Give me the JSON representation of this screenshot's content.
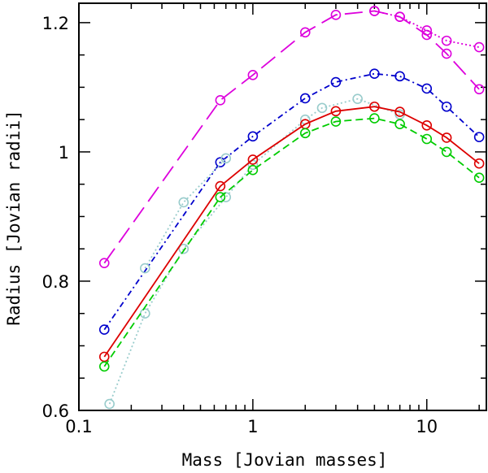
{
  "chart_data": {
    "type": "line",
    "xscale": "log",
    "xlim": [
      0.1,
      22
    ],
    "ylim": [
      0.6,
      1.23
    ],
    "xlabel": "Mass [Jovian masses]",
    "ylabel": "Radius [Jovian radii]",
    "xticks": [
      {
        "value": 0.1,
        "label": "0.1"
      },
      {
        "value": 1,
        "label": "1"
      },
      {
        "value": 10,
        "label": "10"
      }
    ],
    "yticks": [
      {
        "value": 0.6,
        "label": "0.6"
      },
      {
        "value": 0.8,
        "label": "0.8"
      },
      {
        "value": 1.0,
        "label": "1"
      },
      {
        "value": 1.2,
        "label": "1.2"
      }
    ],
    "series": [
      {
        "name": "magenta-long-dash",
        "color": "#dd00dd",
        "dash": "22,9",
        "x": [
          0.14,
          0.65,
          1.0,
          2.0,
          3.0,
          5.0,
          7.0,
          10.0,
          13.0,
          20.0
        ],
        "y": [
          0.828,
          1.08,
          1.119,
          1.185,
          1.212,
          1.218,
          1.209,
          1.181,
          1.152,
          1.097
        ]
      },
      {
        "name": "magenta-dotted",
        "color": "#dd00dd",
        "dash": "2,3",
        "x": [
          5.0,
          7.0,
          10.0,
          13.0,
          20.0
        ],
        "y": [
          1.218,
          1.209,
          1.188,
          1.172,
          1.162
        ]
      },
      {
        "name": "blue-dash-dot",
        "color": "#0000cc",
        "dash": "7,4,2,4",
        "x": [
          0.14,
          0.65,
          1.0,
          2.0,
          3.0,
          5.0,
          7.0,
          10.0,
          13.0,
          20.0
        ],
        "y": [
          0.725,
          0.984,
          1.024,
          1.083,
          1.108,
          1.121,
          1.117,
          1.098,
          1.07,
          1.023
        ]
      },
      {
        "name": "cyan-dotted",
        "color": "#99cccc",
        "dash": "2,3",
        "x": [
          0.15,
          0.24,
          0.4,
          0.7,
          1.0,
          2.0,
          2.5,
          4.0,
          7.0
        ],
        "y": [
          0.61,
          0.75,
          0.85,
          0.93,
          0.98,
          1.05,
          1.068,
          1.082,
          1.058
        ]
      },
      {
        "name": "cyan-dotted-upper",
        "color": "#99cccc",
        "dash": "2,3",
        "x": [
          0.24,
          0.4,
          0.7
        ],
        "y": [
          0.82,
          0.922,
          0.99
        ]
      },
      {
        "name": "red-solid",
        "color": "#dd0000",
        "dash": "",
        "x": [
          0.14,
          0.65,
          1.0,
          2.0,
          3.0,
          5.0,
          7.0,
          10.0,
          13.0,
          20.0
        ],
        "y": [
          0.683,
          0.947,
          0.988,
          1.043,
          1.063,
          1.07,
          1.062,
          1.041,
          1.022,
          0.982
        ]
      },
      {
        "name": "green-dashed",
        "color": "#00cc00",
        "dash": "9,5",
        "x": [
          0.14,
          0.65,
          1.0,
          2.0,
          3.0,
          5.0,
          7.0,
          10.0,
          13.0,
          20.0
        ],
        "y": [
          0.668,
          0.93,
          0.972,
          1.029,
          1.047,
          1.052,
          1.043,
          1.02,
          1.0,
          0.96
        ]
      }
    ]
  }
}
